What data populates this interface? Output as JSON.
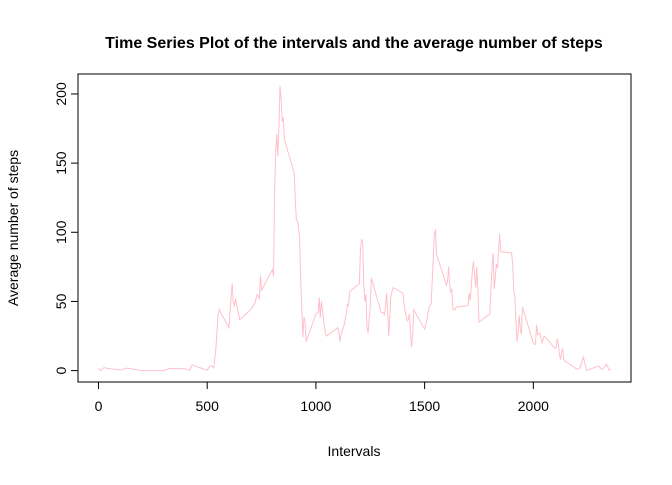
{
  "chart_data": {
    "type": "line",
    "title": "Time Series Plot of the intervals and the average number of steps",
    "x_label": "Intervals",
    "y_label": "Average number of steps",
    "x": [
      0,
      10,
      25,
      45,
      100,
      130,
      200,
      230,
      300,
      330,
      400,
      420,
      430,
      440,
      450,
      500,
      505,
      515,
      520,
      530,
      540,
      550,
      555,
      600,
      610,
      615,
      620,
      625,
      630,
      640,
      650,
      700,
      720,
      730,
      740,
      745,
      750,
      800,
      805,
      810,
      815,
      820,
      825,
      830,
      835,
      840,
      845,
      850,
      855,
      900,
      905,
      910,
      915,
      920,
      925,
      930,
      935,
      940,
      945,
      950,
      955,
      1000,
      1010,
      1015,
      1020,
      1025,
      1030,
      1040,
      1045,
      1050,
      1100,
      1105,
      1110,
      1115,
      1130,
      1140,
      1145,
      1150,
      1155,
      1200,
      1205,
      1210,
      1215,
      1220,
      1225,
      1230,
      1235,
      1240,
      1245,
      1250,
      1255,
      1300,
      1310,
      1315,
      1320,
      1325,
      1330,
      1335,
      1340,
      1345,
      1355,
      1400,
      1410,
      1420,
      1425,
      1430,
      1435,
      1440,
      1445,
      1450,
      1500,
      1510,
      1520,
      1525,
      1530,
      1540,
      1545,
      1550,
      1555,
      1600,
      1605,
      1610,
      1615,
      1620,
      1625,
      1630,
      1640,
      1645,
      1700,
      1705,
      1710,
      1720,
      1725,
      1730,
      1735,
      1740,
      1745,
      1750,
      1800,
      1805,
      1810,
      1815,
      1820,
      1825,
      1830,
      1835,
      1840,
      1845,
      1850,
      1900,
      1905,
      1910,
      1915,
      1920,
      1925,
      1930,
      1935,
      1940,
      1945,
      1950,
      2000,
      2005,
      2010,
      2015,
      2020,
      2030,
      2040,
      2050,
      2100,
      2105,
      2110,
      2115,
      2120,
      2125,
      2130,
      2135,
      2140,
      2145,
      2200,
      2215,
      2230,
      2245,
      2300,
      2315,
      2330,
      2335,
      2340,
      2350,
      2355
    ],
    "series": [
      {
        "name": "steps",
        "color": "#FFC0CB",
        "values": [
          1.7,
          0.1,
          2.1,
          1.5,
          0.3,
          1.8,
          0,
          0,
          0,
          1.6,
          1.2,
          0.3,
          4.1,
          3.5,
          3.0,
          0.3,
          1.6,
          3.5,
          3.3,
          2.0,
          16,
          40,
          44,
          31,
          53,
          63,
          49,
          47,
          52,
          44,
          37,
          44,
          49,
          55,
          52,
          69,
          58,
          73,
          68,
          129,
          158,
          171,
          155,
          177,
          206,
          196,
          180,
          183,
          167,
          143,
          124,
          109,
          108,
          104,
          96,
          66,
          45,
          24,
          39,
          35,
          21,
          41,
          42,
          53,
          38,
          50,
          44,
          31,
          26,
          25,
          31,
          29,
          21,
          26,
          33,
          42,
          48,
          47,
          57,
          63,
          88,
          95,
          93,
          63,
          50,
          55,
          32,
          27,
          38,
          46,
          67,
          42,
          42,
          40,
          46,
          56,
          43,
          25,
          39,
          54,
          60,
          56,
          43,
          36,
          37,
          41,
          27,
          17,
          26,
          44,
          30,
          36,
          46,
          47,
          48,
          82,
          99,
          102,
          84,
          62,
          64,
          75,
          63,
          57,
          59,
          44,
          44,
          46,
          47,
          56,
          51,
          73,
          79,
          69,
          60,
          75,
          57,
          35,
          41,
          58,
          75,
          85,
          59,
          67,
          77,
          74,
          86,
          99,
          86,
          85,
          77,
          58,
          53,
          36,
          21,
          27,
          40,
          30,
          26,
          46,
          20,
          19,
          19,
          33,
          26,
          27,
          20,
          25,
          16,
          17,
          23,
          19,
          12,
          8,
          14,
          16,
          8,
          7,
          1,
          2,
          9.8,
          0.1,
          3.3,
          0.8,
          2.6,
          4.7,
          3.3,
          0.2,
          1.1
        ]
      }
    ],
    "xlim": [
      -94.2,
      2449.2
    ],
    "ylim": [
      -8.25,
      214.42
    ],
    "xticks": [
      0,
      500,
      1000,
      1500,
      2000
    ],
    "yticks": [
      0,
      50,
      100,
      150,
      200
    ]
  }
}
